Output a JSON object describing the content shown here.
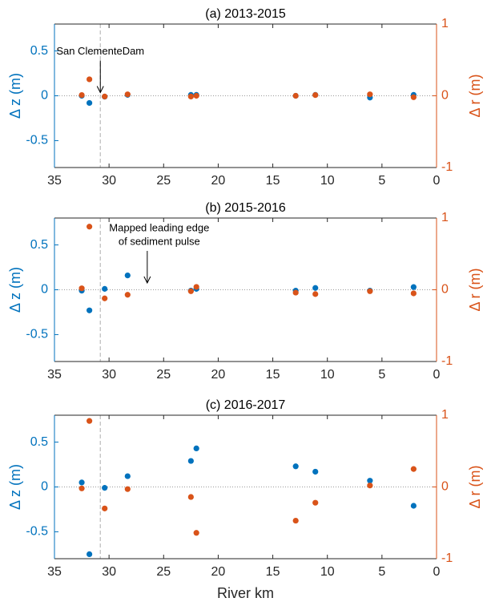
{
  "chart_data": [
    {
      "type": "scatter",
      "title": "(a) 2013-2015",
      "ylabel": "Δ z (m)",
      "y2label": "Δ r (m)",
      "x": [
        32.5,
        31.8,
        30.4,
        28.3,
        22.5,
        22.0,
        12.9,
        11.1,
        6.1,
        2.1
      ],
      "xlim": [
        35,
        0
      ],
      "xticks": [
        35,
        30,
        25,
        20,
        15,
        10,
        5,
        0
      ],
      "ylim": [
        -0.8,
        0.8
      ],
      "yticks": [
        -0.5,
        0,
        0.5
      ],
      "y2lim": [
        -1,
        1
      ],
      "y2ticks": [
        -1,
        0,
        1
      ],
      "vline": 30.8,
      "hline": 0,
      "series": [
        {
          "name": "Δ z",
          "color": "#0072BD",
          "values": [
            0.0,
            -0.08,
            -0.01,
            0.01,
            0.01,
            0.01,
            0.0,
            0.01,
            -0.02,
            0.01
          ]
        },
        {
          "name": "Δ r",
          "color": "#D95319",
          "axis": "y2",
          "values": [
            0.01,
            0.23,
            -0.01,
            0.02,
            -0.01,
            0.0,
            0.0,
            0.01,
            0.02,
            -0.02
          ]
        }
      ],
      "annotations": [
        {
          "text": [
            "San ClementeDam"
          ],
          "x": 30.8,
          "y": 0.0
        }
      ]
    },
    {
      "type": "scatter",
      "title": "(b) 2015-2016",
      "ylabel": "Δ z (m)",
      "y2label": "Δ r (m)",
      "x": [
        32.5,
        31.8,
        30.4,
        28.3,
        22.5,
        22.0,
        12.9,
        11.1,
        6.1,
        2.1
      ],
      "xlim": [
        35,
        0
      ],
      "xticks": [
        35,
        30,
        25,
        20,
        15,
        10,
        5,
        0
      ],
      "ylim": [
        -0.8,
        0.8
      ],
      "yticks": [
        -0.5,
        0,
        0.5
      ],
      "y2lim": [
        -1,
        1
      ],
      "y2ticks": [
        -1,
        0,
        1
      ],
      "vline": 30.8,
      "hline": 0,
      "series": [
        {
          "name": "Δ z",
          "color": "#0072BD",
          "values": [
            -0.01,
            -0.23,
            0.01,
            0.16,
            -0.01,
            0.01,
            -0.01,
            0.02,
            -0.01,
            0.03
          ]
        },
        {
          "name": "Δ r",
          "color": "#D95319",
          "axis": "y2",
          "values": [
            0.02,
            0.88,
            -0.12,
            -0.07,
            -0.02,
            0.04,
            -0.04,
            -0.06,
            -0.02,
            -0.05
          ]
        }
      ],
      "annotations": [
        {
          "text": [
            "Mapped leading edge",
            "of sediment pulse"
          ],
          "x": 26.5,
          "y": 0.04
        }
      ]
    },
    {
      "type": "scatter",
      "title": "(c) 2016-2017",
      "ylabel": "Δ z (m)",
      "y2label": "Δ r (m)",
      "xlabel": "River km",
      "x": [
        32.5,
        31.8,
        30.4,
        28.3,
        22.5,
        22.0,
        12.9,
        11.1,
        6.1,
        2.1
      ],
      "xlim": [
        35,
        0
      ],
      "xticks": [
        35,
        30,
        25,
        20,
        15,
        10,
        5,
        0
      ],
      "ylim": [
        -0.8,
        0.8
      ],
      "yticks": [
        -0.5,
        0,
        0.5
      ],
      "y2lim": [
        -1,
        1
      ],
      "y2ticks": [
        -1,
        0,
        1
      ],
      "vline": 30.8,
      "hline": 0,
      "series": [
        {
          "name": "Δ z",
          "color": "#0072BD",
          "values": [
            0.05,
            -0.75,
            -0.01,
            0.12,
            0.29,
            0.43,
            0.23,
            0.17,
            0.07,
            -0.21
          ]
        },
        {
          "name": "Δ r",
          "color": "#D95319",
          "axis": "y2",
          "values": [
            -0.02,
            0.92,
            -0.3,
            -0.03,
            -0.14,
            -0.64,
            -0.47,
            -0.22,
            0.02,
            0.25
          ]
        }
      ]
    }
  ]
}
